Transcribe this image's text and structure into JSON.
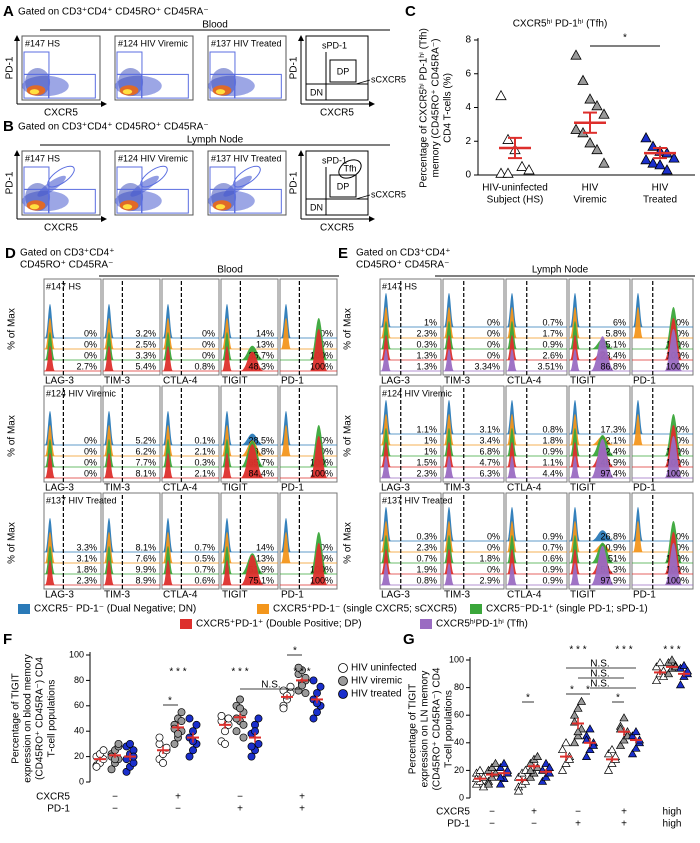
{
  "panels": {
    "samples": [
      "#147 HS",
      "#124 HIV Viremic",
      "#137 HIV Treated"
    ],
    "markers": [
      "LAG-3",
      "TIM-3",
      "CTLA-4",
      "TIGIT",
      "PD-1"
    ],
    "pct_of_max": "% of Max",
    "A": {
      "letter": "A",
      "gate": "Gated on CD3⁺CD4⁺ CD45RO⁺ CD45RA⁻",
      "tissue": "Blood",
      "y_axis": "PD-1",
      "x_axis": "CXCR5",
      "gates": [
        "sPD-1",
        "DP",
        "DN",
        "sCXCR5"
      ]
    },
    "B": {
      "letter": "B",
      "gate": "Gated on CD3⁺CD4⁺ CD45RO⁺ CD45RA⁻",
      "tissue": "Lymph Node",
      "y_axis": "PD-1",
      "x_axis": "CXCR5",
      "gates": [
        "sPD-1",
        "DP",
        "DN",
        "sCXCR5",
        "Tfh"
      ]
    },
    "C": {
      "letter": "C"
    },
    "D": {
      "letter": "D",
      "gate": [
        "Gated on CD3⁺CD4⁺",
        "CD45RO⁺ CD45RA⁻"
      ],
      "tissue": "Blood",
      "values": [
        [
          [
            "0%",
            "0%",
            "0%",
            "2.7%"
          ],
          [
            "3.2%",
            "2.5%",
            "3.3%",
            "5.4%"
          ],
          [
            "0%",
            "0%",
            "0%",
            "0.8%"
          ],
          [
            "14%",
            "13%",
            "35.7%",
            "48.3%"
          ],
          [
            "0%",
            "0%",
            "100%",
            "100%"
          ]
        ],
        [
          [
            "0%",
            "0%",
            "0%",
            "0%"
          ],
          [
            "5.2%",
            "6.2%",
            "7.7%",
            "8.1%"
          ],
          [
            "0.1%",
            "2.1%",
            "0.3%",
            "2.1%"
          ],
          [
            "28.5%",
            "38.8%",
            "65.7%",
            "84.4%"
          ],
          [
            "0%",
            "0%",
            "100%",
            "100%"
          ]
        ],
        [
          [
            "3.3%",
            "3.1%",
            "1.8%",
            "2.3%"
          ],
          [
            "8.1%",
            "7.6%",
            "9.9%",
            "8.9%"
          ],
          [
            "0.7%",
            "0.5%",
            "0.7%",
            "0.6%"
          ],
          [
            "14%",
            "13%",
            "51.9%",
            "75.1%"
          ],
          [
            "0%",
            "0%",
            "100%",
            "100%"
          ]
        ]
      ]
    },
    "E": {
      "letter": "E",
      "gate": [
        "Gated on CD3⁺CD4⁺",
        "CD45RO⁺ CD45RA⁻"
      ],
      "tissue": "Lymph Node",
      "values": [
        [
          [
            "1%",
            "2.3%",
            "0.3%",
            "1.3%",
            "1.3%"
          ],
          [
            "0%",
            "0%",
            "0%",
            "0%",
            "3.34%"
          ],
          [
            "0.7%",
            "1.7%",
            "0.9%",
            "2.6%",
            "3.51%"
          ],
          [
            "6%",
            "5.8%",
            "25.1%",
            "23.4%",
            "86.8%"
          ],
          [
            "0%",
            "0%",
            "100%",
            "100%",
            "100%"
          ]
        ],
        [
          [
            "1.1%",
            "1%",
            "1%",
            "1.5%",
            "2.3%"
          ],
          [
            "3.1%",
            "3.4%",
            "6.8%",
            "4.7%",
            "6.3%"
          ],
          [
            "0.8%",
            "1.8%",
            "0.9%",
            "1.1%",
            "4.4%"
          ],
          [
            "17.3%",
            "22.1%",
            "52.4%",
            "48.9%",
            "97.4%"
          ],
          [
            "0%",
            "0%",
            "100%",
            "100%",
            "100%"
          ]
        ],
        [
          [
            "0.3%",
            "2.3%",
            "0.7%",
            "1.9%",
            "0.8%"
          ],
          [
            "0%",
            "0%",
            "1.8%",
            "0%",
            "2.9%"
          ],
          [
            "0.9%",
            "0.7%",
            "0.6%",
            "0.9%",
            "0.9%"
          ],
          [
            "26.8%",
            "20.9%",
            "51%",
            "51.3%",
            "97.9%"
          ],
          [
            "0%",
            "0%",
            "100%",
            "100%",
            "100%"
          ]
        ]
      ]
    },
    "F": {
      "letter": "F"
    },
    "G": {
      "letter": "G"
    },
    "legend": [
      {
        "label": "CXCR5⁻ PD-1⁻ (Dual Negative; DN)",
        "color": "#2a7ab8"
      },
      {
        "label": "CXCR5⁺PD-1⁻ (single CXCR5; sCXCR5)",
        "color": "#f3961c"
      },
      {
        "label": "CXCR5⁻PD-1⁺ (single PD-1; sPD-1)",
        "color": "#3aa63a"
      },
      {
        "label": "CXCR5⁺PD-1⁺ (Double Positive; DP)",
        "color": "#dd2f2c"
      },
      {
        "label": "CXCR5ʰⁱPD-1ʰⁱ (Tfh)",
        "color": "#9a6cc2"
      }
    ]
  },
  "chart_data": [
    {
      "type": "scatter",
      "title": "CXCR5ʰⁱ PD-1ʰⁱ (Tfh)",
      "ylabel": [
        "Percentage of  CXCR5ʰⁱ PD-1ʰⁱ (Tfh)",
        "memory (CD45RO⁺ CD45RA⁻)",
        "CD4 T-cells (%)"
      ],
      "categories": [
        [
          "HIV-uninfected",
          "Subject (HS)"
        ],
        [
          "HIV",
          "Viremic"
        ],
        [
          "HIV",
          "Treated"
        ]
      ],
      "ylim": [
        0,
        8
      ],
      "yticks": [
        0,
        2,
        4,
        6,
        8
      ],
      "mean_color": "#dd2f2c",
      "series": [
        {
          "color": "#ffffff",
          "values": [
            4.7,
            2.1,
            1.5,
            0.5,
            0.3,
            0.1,
            0.1
          ],
          "mean": 1.6,
          "error": 0.6
        },
        {
          "color": "#9a9a9a",
          "values": [
            7.1,
            5.6,
            4.5,
            4.1,
            3.6,
            2.7,
            2.5,
            1.9,
            1.5,
            0.7
          ],
          "mean": 3.1,
          "error": 0.6
        },
        {
          "color": "#1a2fcc",
          "values": [
            2.2,
            1.7,
            1.4,
            1.3,
            1.0,
            0.9,
            0.7,
            0.6,
            0.3
          ],
          "mean": 1.3,
          "error": 0.3
        }
      ],
      "annotations": [
        {
          "text": "*",
          "color": "#dd2f2c"
        }
      ]
    },
    {
      "type": "dotplot",
      "marker": "circle",
      "ylabel": [
        "Percentage of TIGIT",
        "expression on blood memory",
        "(CD45RO⁺ CD45RA⁻) CD4",
        "T-cell populations"
      ],
      "ylim": [
        0,
        100
      ],
      "yticks": [
        0,
        20,
        40,
        60,
        80,
        100
      ],
      "mean_color": "#dd2f2c",
      "row_labels": [
        {
          "label": "CXCR5",
          "values": [
            "−",
            "+",
            "−",
            "+"
          ]
        },
        {
          "label": "PD-1",
          "values": [
            "−",
            "−",
            "+",
            "+"
          ]
        }
      ],
      "series": [
        {
          "name": "HIV uninfected",
          "color": "#ffffff",
          "values": [
            [
              13,
              15,
              18,
              20,
              22,
              25,
              12
            ],
            [
              18,
              22,
              25,
              30,
              15,
              27,
              35
            ],
            [
              32,
              40,
              45,
              48,
              30,
              50,
              52
            ],
            [
              60,
              65,
              70,
              72,
              68,
              75,
              58
            ]
          ],
          "means": [
            18,
            25,
            45,
            67
          ],
          "errors": [
            2,
            3,
            3,
            2
          ]
        },
        {
          "name": "HIV viremic",
          "color": "#9a9a9a",
          "values": [
            [
              10,
              15,
              18,
              22,
              25,
              28,
              20,
              18,
              30
            ],
            [
              30,
              35,
              40,
              45,
              50,
              55,
              42,
              38,
              48
            ],
            [
              40,
              48,
              55,
              60,
              65,
              45,
              50,
              58,
              35
            ],
            [
              72,
              78,
              80,
              85,
              88,
              82,
              90,
              76,
              70
            ]
          ],
          "means": [
            21,
            43,
            51,
            80
          ],
          "errors": [
            2,
            3,
            3,
            2
          ]
        },
        {
          "name": "HIV treated",
          "color": "#1a2fcc",
          "values": [
            [
              8,
              12,
              15,
              18,
              22,
              25,
              28,
              30,
              20
            ],
            [
              20,
              25,
              30,
              35,
              40,
              45,
              50,
              32
            ],
            [
              20,
              25,
              30,
              38,
              45,
              50,
              28,
              40
            ],
            [
              50,
              55,
              60,
              65,
              70,
              75,
              80,
              62
            ]
          ],
          "means": [
            20,
            35,
            35,
            65
          ],
          "errors": [
            3,
            4,
            4,
            3
          ]
        }
      ],
      "annotations": [
        {
          "text": "* * *",
          "color": "#dd2f2c"
        },
        {
          "text": "* * *",
          "color": "#dd2f2c"
        },
        {
          "text": "* * *",
          "color": "#dd2f2c"
        },
        {
          "text": "*",
          "color": "#2aa84a"
        },
        {
          "text": "N.S.",
          "color": "#000000"
        },
        {
          "text": "*",
          "color": "#2aa84a"
        }
      ]
    },
    {
      "type": "dotplot",
      "marker": "triangle",
      "ylabel": [
        "Percentage of TIGIT",
        "expression on LN memory",
        "(CD45RO⁺ CD45RA⁻) CD4",
        "T-cell populations"
      ],
      "ylim": [
        0,
        100
      ],
      "yticks": [
        0,
        20,
        40,
        60,
        80,
        100
      ],
      "mean_color": "#dd2f2c",
      "row_labels": [
        {
          "label": "CXCR5",
          "values": [
            "−",
            "+",
            "−",
            "+",
            "high"
          ]
        },
        {
          "label": "PD-1",
          "values": [
            "−",
            "−",
            "+",
            "+",
            "high"
          ]
        }
      ],
      "series": [
        {
          "color": "#ffffff",
          "values": [
            [
              10,
              12,
              15,
              18,
              20,
              8,
              14
            ],
            [
              8,
              10,
              12,
              15,
              18,
              20,
              5
            ],
            [
              20,
              25,
              30,
              35,
              40,
              28
            ],
            [
              20,
              25,
              28,
              32,
              35,
              30
            ],
            [
              85,
              90,
              92,
              95,
              98,
              88
            ]
          ],
          "means": [
            14,
            13,
            30,
            28,
            91
          ],
          "errors": [
            2,
            2,
            3,
            2,
            2
          ]
        },
        {
          "color": "#9a9a9a",
          "values": [
            [
              12,
              15,
              18,
              20,
              22,
              25,
              10
            ],
            [
              15,
              18,
              22,
              25,
              28,
              30,
              20
            ],
            [
              40,
              45,
              50,
              60,
              65,
              70,
              55,
              48
            ],
            [
              38,
              42,
              48,
              52,
              58,
              45,
              50
            ],
            [
              90,
              94,
              96,
              98,
              100,
              95
            ]
          ],
          "means": [
            17,
            23,
            54,
            48,
            95
          ],
          "errors": [
            2,
            2,
            4,
            3,
            1
          ]
        },
        {
          "color": "#1a2fcc",
          "values": [
            [
              10,
              14,
              18,
              22,
              25,
              20,
              15
            ],
            [
              12,
              15,
              18,
              20,
              25,
              22
            ],
            [
              30,
              35,
              40,
              45,
              50,
              38,
              42
            ],
            [
              32,
              36,
              40,
              45,
              48,
              42
            ],
            [
              82,
              88,
              90,
              94,
              96,
              92
            ]
          ],
          "means": [
            18,
            19,
            40,
            42,
            90
          ],
          "errors": [
            2,
            2,
            3,
            2,
            2
          ]
        }
      ],
      "annotations": [
        {
          "text": "* * *",
          "color": "#dd2f2c"
        },
        {
          "text": "* * *",
          "color": "#dd2f2c"
        },
        {
          "text": "* * *",
          "color": "#dd2f2c"
        },
        {
          "text": "*",
          "color": "#2aa84a"
        },
        {
          "text": "*",
          "color": "#2aa84a"
        },
        {
          "text": "*",
          "color": "#2aa84a"
        },
        {
          "text": "*",
          "color": "#2aa84a"
        },
        {
          "text": "N.S.",
          "color": "#000000"
        },
        {
          "text": "N.S.",
          "color": "#000000"
        },
        {
          "text": "N.S.",
          "color": "#000000"
        }
      ]
    }
  ]
}
